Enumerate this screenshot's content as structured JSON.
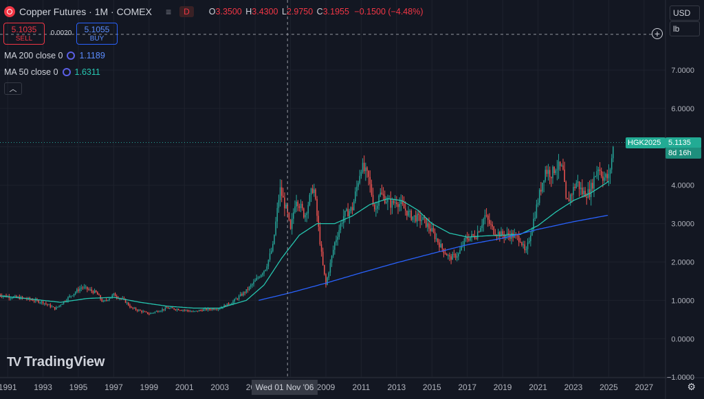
{
  "header": {
    "title": "Copper Futures · 1M · COMEX",
    "bars_icon": "≡",
    "badge": "D",
    "open_label": "O",
    "open": "3.3500",
    "high_label": "H",
    "high": "3.4300",
    "low_label": "L",
    "low": "2.9750",
    "close_label": "C",
    "close": "3.1955",
    "change": "−0.1500 (−4.48%)"
  },
  "trade": {
    "sell_price": "5.1035",
    "sell_label": "SELL",
    "spread": "0.0020",
    "buy_price": "5.1055",
    "buy_label": "BUY"
  },
  "indicators": [
    {
      "label": "MA 200 close 0",
      "value": "1.1189",
      "color": "#2962ff"
    },
    {
      "label": "MA 50 close 0",
      "value": "1.6311",
      "color": "#26c6b0"
    }
  ],
  "collapse_icon": "chevron-up-icon",
  "currency": "USD",
  "unit": "lb",
  "price_tag": {
    "symbol": "HGK2025",
    "price": "5.1135",
    "countdown": "8d 16h"
  },
  "crosshair": {
    "date": "Wed 01 Nov '06",
    "plus_icon": "plus-icon"
  },
  "brand": {
    "logo": "TV",
    "name": "TradingView"
  },
  "gear_icon": "gear-icon",
  "colors": {
    "bg": "#131722",
    "up": "#26a69a",
    "down": "#ef5350",
    "ma200": "#2962ff",
    "ma50": "#26c6b0",
    "grid": "#1e222d"
  },
  "chart_data": {
    "type": "candlestick",
    "title": "Copper Futures · 1M · COMEX",
    "ylim": [
      -1.0,
      7.8
    ],
    "yticks": [
      "7.0000",
      "6.0000",
      "5.0000",
      "4.0000",
      "3.0000",
      "2.0000",
      "1.0000",
      "0.0000",
      "−1.0000"
    ],
    "ytick_values": [
      7,
      6,
      5,
      4,
      3,
      2,
      1,
      0,
      -1
    ],
    "xticks": [
      "1991",
      "1993",
      "1995",
      "1997",
      "1999",
      "2001",
      "2003",
      "2005",
      "2007",
      "2009",
      "2011",
      "2013",
      "2015",
      "2017",
      "2019",
      "2021",
      "2023",
      "2025",
      "2027"
    ],
    "xtick_years": [
      1991,
      1993,
      1995,
      1997,
      1999,
      2001,
      2003,
      2005,
      2007,
      2009,
      2011,
      2013,
      2015,
      2017,
      2019,
      2021,
      2023,
      2025,
      2027
    ],
    "x_range": [
      1990.8,
      2029.3
    ],
    "crosshair_x": 2006.83,
    "last_price": 5.1135,
    "price_series": [
      [
        1990.5,
        1.15
      ],
      [
        1991,
        1.1
      ],
      [
        1992,
        1.05
      ],
      [
        1993,
        0.95
      ],
      [
        1993.7,
        0.78
      ],
      [
        1994.5,
        1.1
      ],
      [
        1995.2,
        1.35
      ],
      [
        1996,
        1.2
      ],
      [
        1996.4,
        0.95
      ],
      [
        1997,
        1.15
      ],
      [
        1997.6,
        1.0
      ],
      [
        1998,
        0.8
      ],
      [
        1999,
        0.65
      ],
      [
        2000,
        0.8
      ],
      [
        2001,
        0.75
      ],
      [
        2001.5,
        0.7
      ],
      [
        2002,
        0.75
      ],
      [
        2003,
        0.8
      ],
      [
        2003.7,
        0.95
      ],
      [
        2004.5,
        1.25
      ],
      [
        2005,
        1.5
      ],
      [
        2005.6,
        1.85
      ],
      [
        2006,
        2.4
      ],
      [
        2006.4,
        3.9
      ],
      [
        2006.8,
        3.3
      ],
      [
        2007,
        2.8
      ],
      [
        2007.3,
        3.7
      ],
      [
        2007.8,
        3.2
      ],
      [
        2008.3,
        4.0
      ],
      [
        2008.8,
        2.0
      ],
      [
        2009,
        1.4
      ],
      [
        2009.5,
        2.5
      ],
      [
        2010,
        3.2
      ],
      [
        2010.5,
        3.4
      ],
      [
        2011,
        4.5
      ],
      [
        2011.4,
        4.2
      ],
      [
        2011.8,
        3.3
      ],
      [
        2012,
        3.8
      ],
      [
        2012.7,
        3.5
      ],
      [
        2013,
        3.6
      ],
      [
        2013.8,
        3.2
      ],
      [
        2014.5,
        3.1
      ],
      [
        2015,
        2.8
      ],
      [
        2015.5,
        2.4
      ],
      [
        2016,
        2.1
      ],
      [
        2016.5,
        2.2
      ],
      [
        2016.9,
        2.6
      ],
      [
        2017.5,
        2.7
      ],
      [
        2018,
        3.2
      ],
      [
        2018.5,
        2.8
      ],
      [
        2019,
        2.7
      ],
      [
        2019.5,
        2.7
      ],
      [
        2020,
        2.6
      ],
      [
        2020.3,
        2.2
      ],
      [
        2020.7,
        3.0
      ],
      [
        2021,
        3.6
      ],
      [
        2021.4,
        4.4
      ],
      [
        2021.8,
        4.3
      ],
      [
        2022,
        4.5
      ],
      [
        2022.4,
        4.4
      ],
      [
        2022.6,
        3.5
      ],
      [
        2022.9,
        3.8
      ],
      [
        2023.2,
        4.1
      ],
      [
        2023.5,
        3.8
      ],
      [
        2023.9,
        3.8
      ],
      [
        2024.4,
        4.5
      ],
      [
        2024.7,
        4.2
      ],
      [
        2025,
        4.2
      ],
      [
        2025.3,
        5.11
      ]
    ],
    "ma50_series": [
      [
        1990.5,
        1.12
      ],
      [
        1992,
        1.05
      ],
      [
        1994,
        0.95
      ],
      [
        1995.5,
        1.05
      ],
      [
        1997,
        1.08
      ],
      [
        1998.5,
        0.95
      ],
      [
        2000,
        0.85
      ],
      [
        2001.5,
        0.8
      ],
      [
        2003,
        0.8
      ],
      [
        2004.5,
        1.0
      ],
      [
        2005.5,
        1.4
      ],
      [
        2006.5,
        2.1
      ],
      [
        2007.5,
        2.7
      ],
      [
        2008.5,
        3.0
      ],
      [
        2009.5,
        3.0
      ],
      [
        2010.5,
        3.2
      ],
      [
        2011.5,
        3.5
      ],
      [
        2012.5,
        3.65
      ],
      [
        2013.3,
        3.6
      ],
      [
        2014.2,
        3.35
      ],
      [
        2015,
        3.0
      ],
      [
        2016,
        2.75
      ],
      [
        2017,
        2.65
      ],
      [
        2018,
        2.68
      ],
      [
        2019,
        2.7
      ],
      [
        2020,
        2.72
      ],
      [
        2021,
        2.95
      ],
      [
        2022,
        3.3
      ],
      [
        2023,
        3.6
      ],
      [
        2024,
        3.8
      ],
      [
        2025,
        4.1
      ]
    ],
    "ma200_series": [
      [
        2005.2,
        1.0
      ],
      [
        2007,
        1.2
      ],
      [
        2009,
        1.45
      ],
      [
        2011,
        1.72
      ],
      [
        2013,
        1.98
      ],
      [
        2015,
        2.22
      ],
      [
        2017,
        2.45
      ],
      [
        2019,
        2.62
      ],
      [
        2021,
        2.85
      ],
      [
        2023,
        3.05
      ],
      [
        2025,
        3.22
      ]
    ]
  }
}
